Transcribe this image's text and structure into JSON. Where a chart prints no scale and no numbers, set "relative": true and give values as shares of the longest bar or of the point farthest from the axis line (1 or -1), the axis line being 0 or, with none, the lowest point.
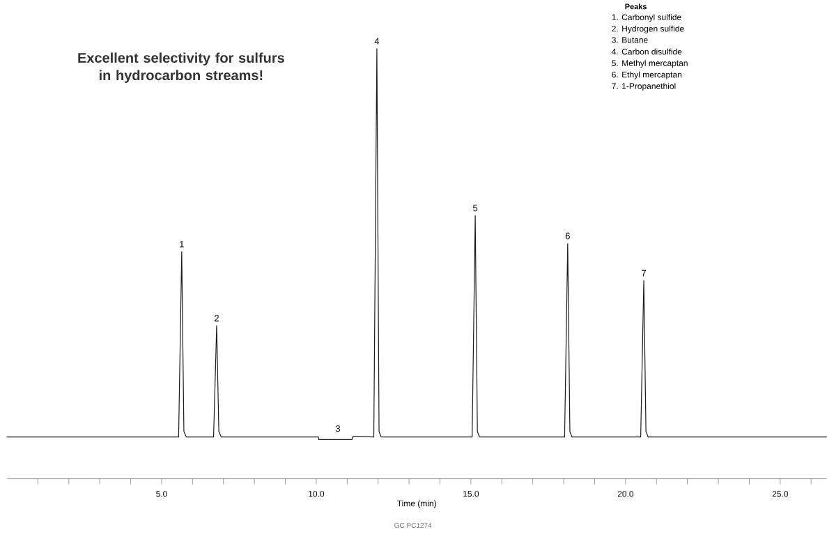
{
  "chart_data": {
    "type": "line",
    "title": "Excellent selectivity for sulfurs in hydrocarbon streams!",
    "xlabel": "Time (min)",
    "legend_title": "Peaks",
    "relative": true,
    "color": "#1a1a1a",
    "x": [
      0,
      5.55,
      5.65,
      5.72,
      5.8,
      6.68,
      6.78,
      6.85,
      6.93,
      10.07,
      10.08,
      11.15,
      11.19,
      11.86,
      11.96,
      12.03,
      12.1,
      15.04,
      15.14,
      15.21,
      15.28,
      18.03,
      18.13,
      18.2,
      18.27,
      20.49,
      20.59,
      20.66,
      20.73,
      26.5
    ],
    "values": [
      0.097,
      0.097,
      0.528,
      0.11,
      0.097,
      0.097,
      0.356,
      0.11,
      0.097,
      0.097,
      0.091,
      0.091,
      0.099,
      0.097,
      1,
      0.11,
      0.097,
      0.097,
      0.612,
      0.11,
      0.097,
      0.097,
      0.547,
      0.11,
      0.097,
      0.097,
      0.461,
      0.11,
      0.097,
      0.097
    ],
    "xlim": [
      0,
      26.5
    ],
    "xticks": [
      {
        "value": 1,
        "label": null
      },
      {
        "value": 2,
        "label": null
      },
      {
        "value": 3,
        "label": null
      },
      {
        "value": 4,
        "label": null
      },
      {
        "value": 5,
        "label": "5.0"
      },
      {
        "value": 6,
        "label": null
      },
      {
        "value": 7,
        "label": null
      },
      {
        "value": 8,
        "label": null
      },
      {
        "value": 9,
        "label": null
      },
      {
        "value": 10,
        "label": "10.0"
      },
      {
        "value": 11,
        "label": null
      },
      {
        "value": 12,
        "label": null
      },
      {
        "value": 13,
        "label": null
      },
      {
        "value": 14,
        "label": null
      },
      {
        "value": 15,
        "label": "15.0"
      },
      {
        "value": 16,
        "label": null
      },
      {
        "value": 17,
        "label": null
      },
      {
        "value": 18,
        "label": null
      },
      {
        "value": 19,
        "label": null
      },
      {
        "value": 20,
        "label": "20.0"
      },
      {
        "value": 21,
        "label": null
      },
      {
        "value": 22,
        "label": null
      },
      {
        "value": 23,
        "label": null
      },
      {
        "value": 24,
        "label": null
      },
      {
        "value": 25,
        "label": "25.0"
      },
      {
        "value": 26,
        "label": null
      }
    ],
    "tick_labels": "x",
    "grid": false,
    "annotations": [
      {
        "text": "1",
        "x": 5.65,
        "y": 0.528
      },
      {
        "text": "2",
        "x": 6.78,
        "y": 0.356
      },
      {
        "text": "3",
        "x": 10.7,
        "y": 0.099
      },
      {
        "text": "4",
        "x": 11.96,
        "y": 1
      },
      {
        "text": "5",
        "x": 15.14,
        "y": 0.612
      },
      {
        "text": "6",
        "x": 18.13,
        "y": 0.547
      },
      {
        "text": "7",
        "x": 20.59,
        "y": 0.461
      },
      "1. Carbonyl sulfide",
      "2. Hydrogen sulfide",
      "3. Butane",
      "4. Carbon disulfide",
      "5. Methyl mercaptan",
      "6. Ethyl mercaptan",
      "7. 1-Propanethiol",
      "GC PC1274"
    ]
  }
}
